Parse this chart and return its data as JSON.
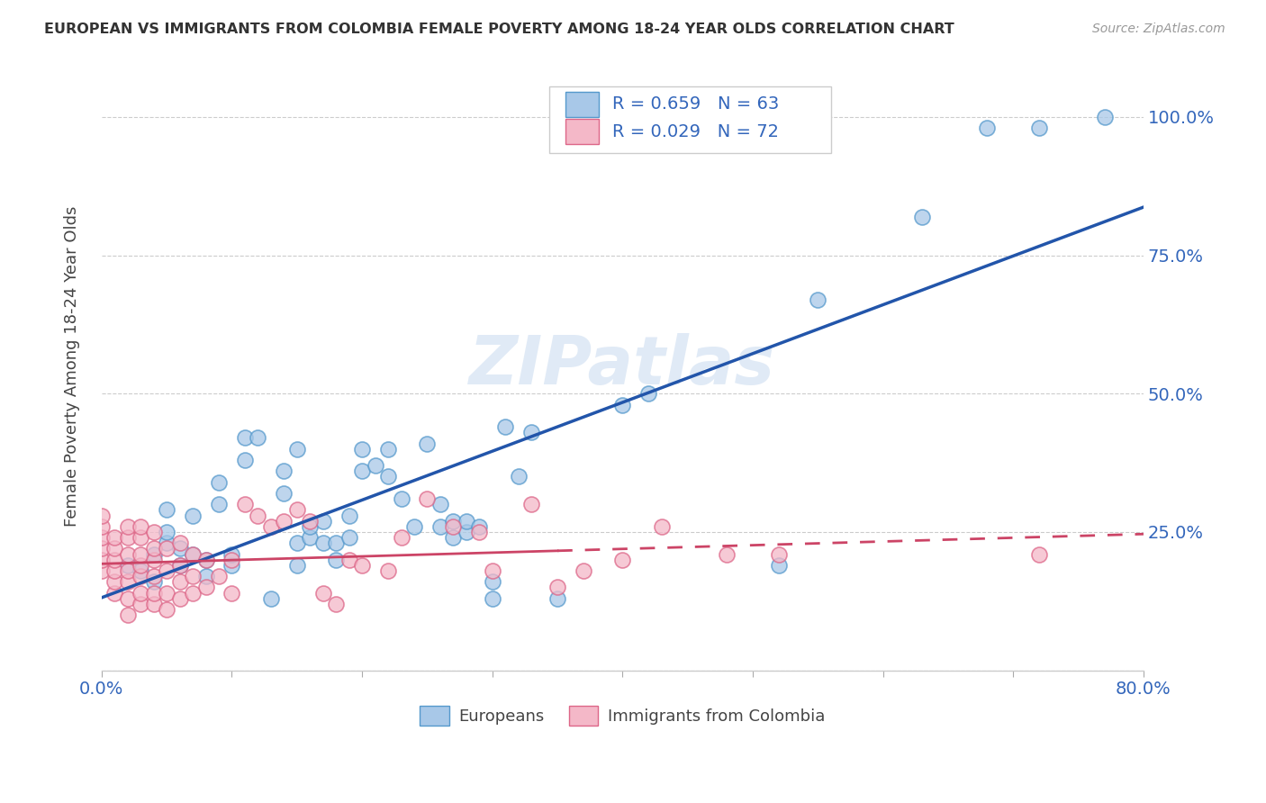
{
  "title": "EUROPEAN VS IMMIGRANTS FROM COLOMBIA FEMALE POVERTY AMONG 18-24 YEAR OLDS CORRELATION CHART",
  "source": "Source: ZipAtlas.com",
  "ylabel": "Female Poverty Among 18-24 Year Olds",
  "xlim": [
    0.0,
    0.8
  ],
  "ylim": [
    0.0,
    1.1
  ],
  "xticks": [
    0.0,
    0.1,
    0.2,
    0.3,
    0.4,
    0.5,
    0.6,
    0.7,
    0.8
  ],
  "xticklabels": [
    "0.0%",
    "",
    "",
    "",
    "",
    "",
    "",
    "",
    "80.0%"
  ],
  "ytick_positions": [
    0.0,
    0.25,
    0.5,
    0.75,
    1.0
  ],
  "ytick_labels": [
    "",
    "25.0%",
    "50.0%",
    "75.0%",
    "100.0%"
  ],
  "european_color": "#a8c8e8",
  "colombia_color": "#f4b8c8",
  "european_edge_color": "#5599cc",
  "colombia_edge_color": "#dd6688",
  "european_line_color": "#2255aa",
  "colombia_line_color": "#cc4466",
  "watermark": "ZIPatlas",
  "european_x": [
    0.02,
    0.03,
    0.04,
    0.04,
    0.05,
    0.05,
    0.05,
    0.06,
    0.06,
    0.07,
    0.07,
    0.08,
    0.08,
    0.09,
    0.09,
    0.1,
    0.1,
    0.11,
    0.11,
    0.12,
    0.13,
    0.14,
    0.14,
    0.15,
    0.15,
    0.15,
    0.16,
    0.16,
    0.17,
    0.17,
    0.18,
    0.18,
    0.19,
    0.19,
    0.2,
    0.2,
    0.21,
    0.22,
    0.22,
    0.23,
    0.24,
    0.25,
    0.26,
    0.26,
    0.27,
    0.27,
    0.28,
    0.28,
    0.29,
    0.3,
    0.3,
    0.31,
    0.32,
    0.33,
    0.35,
    0.4,
    0.42,
    0.52,
    0.55,
    0.63,
    0.68,
    0.72,
    0.77
  ],
  "european_y": [
    0.19,
    0.18,
    0.16,
    0.21,
    0.23,
    0.25,
    0.29,
    0.19,
    0.22,
    0.21,
    0.28,
    0.17,
    0.2,
    0.3,
    0.34,
    0.19,
    0.21,
    0.38,
    0.42,
    0.42,
    0.13,
    0.32,
    0.36,
    0.19,
    0.23,
    0.4,
    0.24,
    0.26,
    0.23,
    0.27,
    0.2,
    0.23,
    0.24,
    0.28,
    0.36,
    0.4,
    0.37,
    0.35,
    0.4,
    0.31,
    0.26,
    0.41,
    0.3,
    0.26,
    0.24,
    0.27,
    0.25,
    0.27,
    0.26,
    0.16,
    0.13,
    0.44,
    0.35,
    0.43,
    0.13,
    0.48,
    0.5,
    0.19,
    0.67,
    0.82,
    0.98,
    0.98,
    1.0
  ],
  "colombia_x": [
    0.0,
    0.0,
    0.0,
    0.0,
    0.0,
    0.0,
    0.01,
    0.01,
    0.01,
    0.01,
    0.01,
    0.01,
    0.02,
    0.02,
    0.02,
    0.02,
    0.02,
    0.02,
    0.02,
    0.03,
    0.03,
    0.03,
    0.03,
    0.03,
    0.03,
    0.03,
    0.04,
    0.04,
    0.04,
    0.04,
    0.04,
    0.04,
    0.05,
    0.05,
    0.05,
    0.05,
    0.06,
    0.06,
    0.06,
    0.06,
    0.07,
    0.07,
    0.07,
    0.08,
    0.08,
    0.09,
    0.1,
    0.1,
    0.11,
    0.12,
    0.13,
    0.14,
    0.15,
    0.16,
    0.17,
    0.18,
    0.19,
    0.2,
    0.22,
    0.23,
    0.25,
    0.27,
    0.29,
    0.3,
    0.33,
    0.35,
    0.37,
    0.4,
    0.43,
    0.48,
    0.52,
    0.72
  ],
  "colombia_y": [
    0.18,
    0.2,
    0.22,
    0.24,
    0.26,
    0.28,
    0.14,
    0.16,
    0.18,
    0.2,
    0.22,
    0.24,
    0.1,
    0.13,
    0.16,
    0.18,
    0.21,
    0.24,
    0.26,
    0.12,
    0.14,
    0.17,
    0.19,
    0.21,
    0.24,
    0.26,
    0.12,
    0.14,
    0.17,
    0.2,
    0.22,
    0.25,
    0.11,
    0.14,
    0.18,
    0.22,
    0.13,
    0.16,
    0.19,
    0.23,
    0.14,
    0.17,
    0.21,
    0.15,
    0.2,
    0.17,
    0.14,
    0.2,
    0.3,
    0.28,
    0.26,
    0.27,
    0.29,
    0.27,
    0.14,
    0.12,
    0.2,
    0.19,
    0.18,
    0.24,
    0.31,
    0.26,
    0.25,
    0.18,
    0.3,
    0.15,
    0.18,
    0.2,
    0.26,
    0.21,
    0.21,
    0.21
  ]
}
